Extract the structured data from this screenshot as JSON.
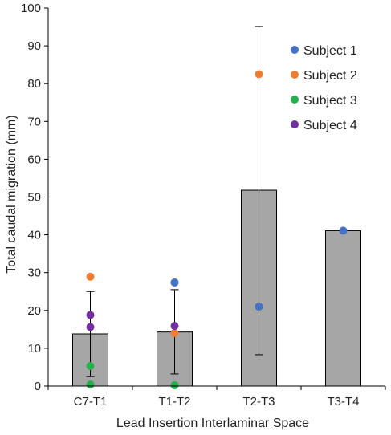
{
  "chart_data": {
    "type": "bar",
    "xlabel": "Lead Insertion Interlaminar Space",
    "ylabel": "Total caudal migration (mm)",
    "ylim": [
      0,
      100
    ],
    "yticks": [
      0,
      10,
      20,
      30,
      40,
      50,
      60,
      70,
      80,
      90,
      100
    ],
    "categories": [
      "C7-T1",
      "T1-T2",
      "T2-T3",
      "T3-T4"
    ],
    "bars": [
      {
        "category": "C7-T1",
        "value": 13.8,
        "error_low": 2.5,
        "error_high": 25.0
      },
      {
        "category": "T1-T2",
        "value": 14.3,
        "error_low": 3.2,
        "error_high": 25.5
      },
      {
        "category": "T2-T3",
        "value": 51.8,
        "error_low": 8.3,
        "error_high": 95.1
      },
      {
        "category": "T3-T4",
        "value": 41.1,
        "error_low": null,
        "error_high": null
      }
    ],
    "bar_color": "#a6a6a6",
    "legend_position": "top-right",
    "series": [
      {
        "name": "Subject 1",
        "color": "#4472c4",
        "points": [
          {
            "category": "T1-T2",
            "value": 27.4
          },
          {
            "category": "T2-T3",
            "value": 21.0
          },
          {
            "category": "T3-T4",
            "value": 41.1
          }
        ]
      },
      {
        "name": "Subject 2",
        "color": "#ed7d31",
        "points": [
          {
            "category": "C7-T1",
            "value": 28.9
          },
          {
            "category": "T1-T2",
            "value": 14.0
          },
          {
            "category": "T2-T3",
            "value": 82.5
          }
        ]
      },
      {
        "name": "Subject 3",
        "color": "#22b14c",
        "points": [
          {
            "category": "C7-T1",
            "value": 5.3
          },
          {
            "category": "C7-T1",
            "value": 0.4
          },
          {
            "category": "T1-T2",
            "value": 0.2
          }
        ]
      },
      {
        "name": "Subject 4",
        "color": "#7030a0",
        "points": [
          {
            "category": "C7-T1",
            "value": 18.8
          },
          {
            "category": "C7-T1",
            "value": 15.6
          },
          {
            "category": "T1-T2",
            "value": 15.9
          }
        ]
      }
    ]
  }
}
